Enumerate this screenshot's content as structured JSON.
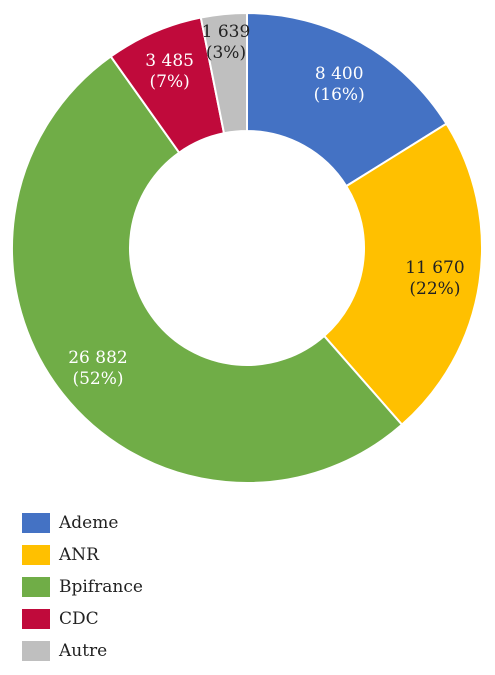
{
  "chart_data": {
    "type": "pie",
    "donut": true,
    "title": "",
    "legend_position": "bottom-left",
    "categories": [
      "Ademe",
      "ANR",
      "Bpifrance",
      "CDC",
      "Autre"
    ],
    "values": [
      8400,
      11670,
      26882,
      3485,
      1639
    ],
    "value_labels": [
      "8 400",
      "11 670",
      "26 882",
      "3 485",
      "1 639"
    ],
    "percent_labels": [
      "(16%)",
      "(22%)",
      "(52%)",
      "(7%)",
      "(3%)"
    ],
    "colors": [
      "#4472C4",
      "#FFC000",
      "#70AD47",
      "#C00A3B",
      "#BFBFBF"
    ],
    "label_colors": [
      "#ffffff",
      "#222222",
      "#ffffff",
      "#ffffff",
      "#222222"
    ]
  }
}
